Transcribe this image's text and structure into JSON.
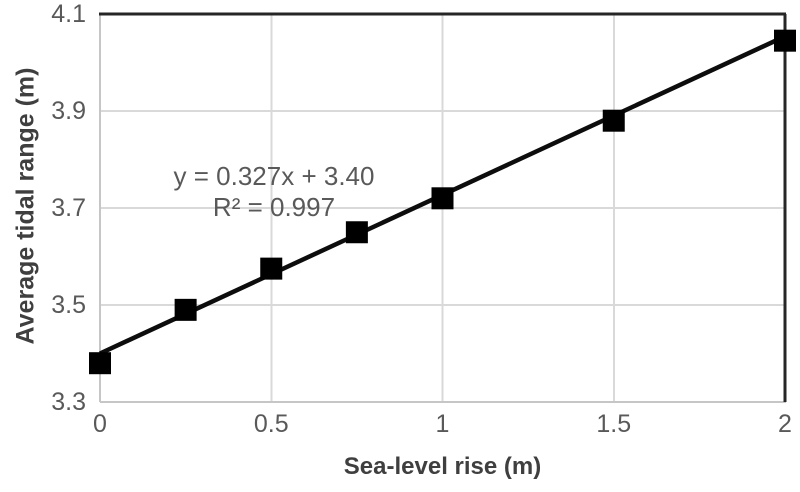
{
  "chart_data": {
    "type": "scatter",
    "xlabel": "Sea-level rise (m)",
    "ylabel": "Average tidal range (m)",
    "xlim": [
      0,
      2
    ],
    "ylim": [
      3.3,
      4.1
    ],
    "x_ticks": [
      "0",
      "0.5",
      "1",
      "1.5",
      "2"
    ],
    "y_ticks": [
      "4.1",
      "3.9",
      "3.7",
      "3.5",
      "3.3"
    ],
    "grid": true,
    "legend": "none",
    "points": [
      {
        "x": 0,
        "y": 3.38
      },
      {
        "x": 0.25,
        "y": 3.49
      },
      {
        "x": 0.5,
        "y": 3.575
      },
      {
        "x": 0.75,
        "y": 3.65
      },
      {
        "x": 1,
        "y": 3.72
      },
      {
        "x": 1.5,
        "y": 3.88
      },
      {
        "x": 2,
        "y": 4.045
      }
    ],
    "trendline": {
      "slope": 0.327,
      "intercept": 3.4
    },
    "annotation": {
      "equation": "y = 0.327x + 3.40",
      "r_squared": "R² = 0.997"
    },
    "colors": {
      "marker": "#000000",
      "trendline": "#0d0d0d",
      "gridline": "#d9d9d9",
      "axis_line": "#c6c6c6",
      "border_dark": "#262626",
      "tick_label": "#595959",
      "axis_title": "#3f3f3f",
      "annotation_text": "#595959",
      "background": "#ffffff"
    }
  }
}
